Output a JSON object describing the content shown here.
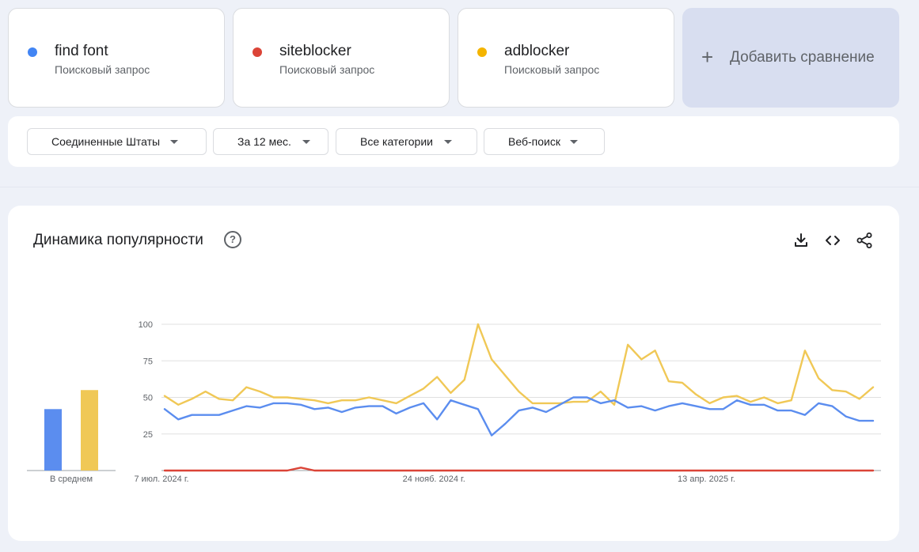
{
  "terms": [
    {
      "name": "find font",
      "kind": "Поисковый запрос",
      "color": "#4285f4"
    },
    {
      "name": "siteblocker",
      "kind": "Поисковый запрос",
      "color": "#db4437"
    },
    {
      "name": "adblocker",
      "kind": "Поисковый запрос",
      "color": "#f4b400"
    }
  ],
  "add_compare": {
    "label": "Добавить сравнение",
    "icon": "plus-icon"
  },
  "filters": {
    "region": "Соединенные Штаты",
    "period": "За 12 мес.",
    "category": "Все категории",
    "search_type": "Веб-поиск"
  },
  "chart_card": {
    "title": "Динамика популярности",
    "icons": [
      "help-icon",
      "download-icon",
      "embed-code-icon",
      "share-icon"
    ]
  },
  "chart_data": [
    {
      "type": "bar",
      "categories": [
        "find font",
        "siteblocker",
        "adblocker"
      ],
      "values": [
        42,
        0,
        55
      ],
      "xlabel": "В среднем",
      "colors": [
        "#5b8def",
        "#db4437",
        "#f0c856"
      ]
    },
    {
      "type": "line",
      "ylim": [
        0,
        100
      ],
      "yticks": [
        25,
        50,
        75,
        100
      ],
      "grid": true,
      "xtick_labels": [
        {
          "index": 0,
          "label": "7 июл. 2024 г."
        },
        {
          "index": 20,
          "label": "24 нояб. 2024 г."
        },
        {
          "index": 40,
          "label": "13 апр. 2025 г."
        }
      ],
      "series": [
        {
          "name": "find font",
          "color": "#5b8def",
          "values": [
            42,
            35,
            38,
            38,
            38,
            41,
            44,
            43,
            46,
            46,
            45,
            42,
            43,
            40,
            43,
            44,
            44,
            39,
            43,
            46,
            35,
            48,
            45,
            42,
            24,
            32,
            41,
            43,
            40,
            45,
            50,
            50,
            46,
            48,
            43,
            44,
            41,
            44,
            46,
            44,
            42,
            42,
            48,
            45,
            45,
            41,
            41,
            38,
            46,
            44,
            37,
            34,
            34
          ]
        },
        {
          "name": "siteblocker",
          "color": "#db4437",
          "values": [
            0,
            0,
            0,
            0,
            0,
            0,
            0,
            0,
            0,
            0,
            2,
            0,
            0,
            0,
            0,
            0,
            0,
            0,
            0,
            0,
            0,
            0,
            0,
            0,
            0,
            0,
            0,
            0,
            0,
            0,
            0,
            0,
            0,
            0,
            0,
            0,
            0,
            0,
            0,
            0,
            0,
            0,
            0,
            0,
            0,
            0,
            0,
            0,
            0,
            0,
            0,
            0,
            0
          ]
        },
        {
          "name": "adblocker",
          "color": "#f0c856",
          "values": [
            51,
            45,
            49,
            54,
            49,
            48,
            57,
            54,
            50,
            50,
            49,
            48,
            46,
            48,
            48,
            50,
            48,
            46,
            51,
            56,
            64,
            53,
            62,
            100,
            76,
            65,
            54,
            46,
            46,
            46,
            47,
            47,
            54,
            45,
            86,
            76,
            82,
            61,
            60,
            52,
            46,
            50,
            51,
            47,
            50,
            46,
            48,
            82,
            63,
            55,
            54,
            49,
            57
          ]
        }
      ]
    }
  ]
}
